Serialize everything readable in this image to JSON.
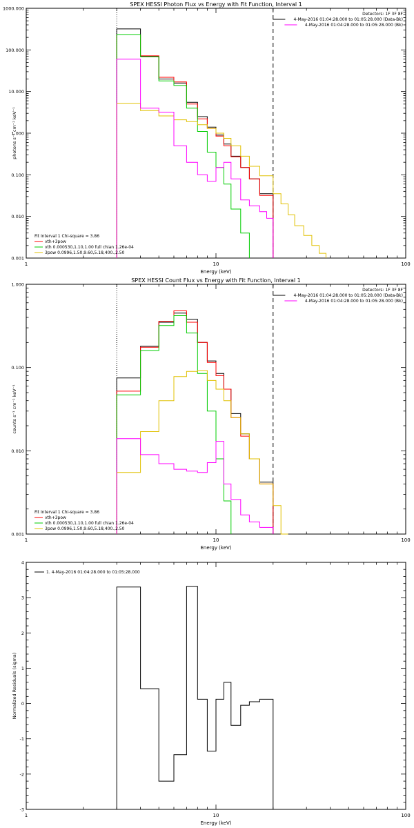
{
  "chart_data": [
    {
      "type": "line",
      "title": "SPEX HESSI Photon Flux vs Energy with Fit Function, Interval 1",
      "xlabel": "Energy (keV)",
      "ylabel": "photons s⁻¹ cm⁻² keV⁻¹",
      "xscale": "log",
      "yscale": "log",
      "xlim": [
        1,
        100
      ],
      "ylim": [
        0.001,
        1000
      ],
      "xticks": [
        {
          "v": 1,
          "l": "1"
        },
        {
          "v": 10,
          "l": "10"
        },
        {
          "v": 100,
          "l": "100"
        }
      ],
      "yticks": [
        {
          "v": 0.001,
          "l": "0.001"
        },
        {
          "v": 0.01,
          "l": "0.010"
        },
        {
          "v": 0.1,
          "l": "0.100"
        },
        {
          "v": 1,
          "l": "1.000"
        },
        {
          "v": 10,
          "l": "10.000"
        },
        {
          "v": 100,
          "l": "100.000"
        },
        {
          "v": 1000,
          "l": "1000.000"
        }
      ],
      "vlines": [
        {
          "x": 3.0,
          "style": "dotted"
        },
        {
          "x": 20.0,
          "style": "dashed"
        }
      ],
      "legend_tr": {
        "lines": [
          {
            "text": "Detectors: 1F 3F 8F",
            "color": ""
          },
          {
            "text": "4-May-2016 01:04:28.000 to 01:05:28.000 (Data-Bk)",
            "color": "#000000"
          },
          {
            "text": "4-May-2016 01:04:28.000 to 01:05:28.000 (Bk)",
            "color": "#ff00ff"
          }
        ]
      },
      "legend_bl": {
        "header": "Fit Interval 1   Chi-square = 3.86",
        "lines": [
          {
            "text": "vth+3pow",
            "color": "#ff0000"
          },
          {
            "text": "vth 0.000530,1.10,1.00  full chian 1.26e-04",
            "color": "#00cc00"
          },
          {
            "text": "3pow 0.0996,1.50,9.60,5.18,400.,2.50",
            "color": "#e0c000"
          }
        ]
      },
      "series": [
        {
          "color": "#000000",
          "edges": [
            3,
            4,
            5,
            6,
            7,
            8,
            9,
            10,
            11,
            12,
            13.5,
            15,
            17,
            20
          ],
          "values": [
            320,
            70,
            20,
            16,
            5.5,
            2.5,
            1.4,
            0.9,
            0.55,
            0.28,
            0.15,
            0.08,
            0.035
          ]
        },
        {
          "color": "#ff0000",
          "edges": [
            3,
            4,
            5,
            6,
            7,
            8,
            9,
            10,
            11,
            12,
            13.5,
            15,
            17,
            20
          ],
          "values": [
            230,
            72,
            22,
            17,
            5,
            2.2,
            1.3,
            0.85,
            0.5,
            0.27,
            0.15,
            0.08,
            0.032
          ]
        },
        {
          "color": "#00cc00",
          "edges": [
            3,
            4,
            5,
            6,
            7,
            8,
            9,
            10,
            11,
            12,
            13.5,
            15
          ],
          "values": [
            230,
            68,
            18,
            14,
            4,
            1.1,
            0.35,
            0.15,
            0.06,
            0.015,
            0.004,
            0.001
          ]
        },
        {
          "color": "#e0c000",
          "edges": [
            3,
            4,
            5,
            6,
            7,
            8,
            9,
            10,
            11,
            12,
            13.5,
            15,
            17,
            20,
            22,
            24,
            26,
            29,
            32,
            35,
            38
          ],
          "values": [
            5.2,
            3.5,
            2.6,
            2.1,
            1.9,
            1.6,
            1.3,
            1.0,
            0.75,
            0.5,
            0.28,
            0.16,
            0.095,
            0.035,
            0.02,
            0.011,
            0.006,
            0.0035,
            0.002,
            0.0013
          ]
        },
        {
          "color": "#ff00ff",
          "edges": [
            3,
            4,
            5,
            6,
            7,
            8,
            9,
            10,
            11,
            12,
            13.5,
            15,
            17,
            18.5,
            20
          ],
          "values": [
            60,
            4.0,
            3.2,
            0.5,
            0.2,
            0.1,
            0.07,
            0.15,
            0.2,
            0.08,
            0.025,
            0.018,
            0.013,
            0.009
          ]
        }
      ]
    },
    {
      "type": "line",
      "title": "SPEX HESSI Count Flux vs Energy with Fit Function, Interval 1",
      "xlabel": "Energy (keV)",
      "ylabel": "counts s⁻¹ cm⁻² keV⁻¹",
      "xscale": "log",
      "yscale": "log",
      "xlim": [
        1,
        100
      ],
      "ylim": [
        0.001,
        1
      ],
      "xticks": [
        {
          "v": 1,
          "l": "1"
        },
        {
          "v": 10,
          "l": "10"
        },
        {
          "v": 100,
          "l": "100"
        }
      ],
      "yticks": [
        {
          "v": 0.001,
          "l": "0.001"
        },
        {
          "v": 0.01,
          "l": "0.010"
        },
        {
          "v": 0.1,
          "l": "0.100"
        },
        {
          "v": 1,
          "l": "1.000"
        }
      ],
      "vlines": [
        {
          "x": 3.0,
          "style": "dotted"
        },
        {
          "x": 20.0,
          "style": "dashed"
        }
      ],
      "legend_tr": {
        "lines": [
          {
            "text": "Detectors: 1F 3F 8F",
            "color": ""
          },
          {
            "text": "4-May-2016 01:04:28.000 to 01:05:28.000 (Data-Bk)",
            "color": "#000000"
          },
          {
            "text": "4-May-2016 01:04:28.000 to 01:05:28.000 (Bk)",
            "color": "#ff00ff"
          }
        ]
      },
      "legend_bl": {
        "header": "Fit Interval 1   Chi-square = 3.86",
        "lines": [
          {
            "text": "vth+3pow",
            "color": "#ff0000"
          },
          {
            "text": "vth 0.000530,1.10,1.00  full chian 1.26e-04",
            "color": "#00cc00"
          },
          {
            "text": "3pow 0.0996,1.50,9.60,5.18,400.,2.50",
            "color": "#e0c000"
          }
        ]
      },
      "series": [
        {
          "color": "#000000",
          "edges": [
            3,
            4,
            5,
            6,
            7,
            8,
            9,
            10,
            11,
            12,
            13.5,
            15,
            17,
            20
          ],
          "values": [
            0.075,
            0.18,
            0.35,
            0.45,
            0.38,
            0.2,
            0.12,
            0.085,
            0.055,
            0.028,
            0.016,
            0.008,
            0.0042
          ]
        },
        {
          "color": "#ff0000",
          "edges": [
            3,
            4,
            5,
            6,
            7,
            8,
            9,
            10,
            11,
            12,
            13.5,
            15,
            17,
            20
          ],
          "values": [
            0.052,
            0.175,
            0.36,
            0.48,
            0.35,
            0.2,
            0.115,
            0.08,
            0.055,
            0.025,
            0.015,
            0.008,
            0.004
          ]
        },
        {
          "color": "#00cc00",
          "edges": [
            3,
            4,
            5,
            6,
            7,
            8,
            9,
            10,
            11,
            12
          ],
          "values": [
            0.047,
            0.16,
            0.32,
            0.42,
            0.26,
            0.085,
            0.03,
            0.008,
            0.0025
          ]
        },
        {
          "color": "#e0c000",
          "edges": [
            3,
            4,
            5,
            6,
            7,
            8,
            9,
            10,
            11,
            12,
            13.5,
            15,
            17,
            20,
            22,
            24
          ],
          "values": [
            0.0055,
            0.017,
            0.04,
            0.078,
            0.09,
            0.092,
            0.07,
            0.055,
            0.04,
            0.025,
            0.016,
            0.008,
            0.004,
            0.0022,
            0.001
          ]
        },
        {
          "color": "#ff00ff",
          "edges": [
            3,
            4,
            5,
            6,
            7,
            8,
            9,
            10,
            11,
            12,
            13.5,
            15,
            17,
            20
          ],
          "values": [
            0.014,
            0.009,
            0.007,
            0.006,
            0.0057,
            0.0055,
            0.0072,
            0.013,
            0.004,
            0.0026,
            0.0017,
            0.0014,
            0.0012
          ]
        }
      ]
    },
    {
      "type": "line",
      "title": "",
      "xlabel": "Energy (keV)",
      "ylabel": "Normalized Residuals (sigma)",
      "xscale": "log",
      "yscale": "linear",
      "xlim": [
        1,
        100
      ],
      "ylim": [
        -3,
        4
      ],
      "xticks": [
        {
          "v": 1,
          "l": "1"
        },
        {
          "v": 10,
          "l": "10"
        },
        {
          "v": 100,
          "l": "100"
        }
      ],
      "yticks": [
        {
          "v": -3,
          "l": "-3"
        },
        {
          "v": -2,
          "l": "-2"
        },
        {
          "v": -1,
          "l": "-1"
        },
        {
          "v": 0,
          "l": "0"
        },
        {
          "v": 1,
          "l": "1"
        },
        {
          "v": 2,
          "l": "2"
        },
        {
          "v": 3,
          "l": "3"
        },
        {
          "v": 4,
          "l": "4"
        }
      ],
      "vlines": [],
      "legend_tl": {
        "lines": [
          {
            "text": "1.  4-May-2016 01:04:28.000 to 01:05:28.000",
            "color": "#000000"
          }
        ]
      },
      "series": [
        {
          "color": "#000000",
          "edges": [
            3,
            4,
            5,
            6,
            7,
            8,
            9,
            10,
            11,
            12,
            13.5,
            15,
            17,
            20
          ],
          "values": [
            3.3,
            0.42,
            -2.2,
            -1.45,
            3.32,
            0.12,
            -1.35,
            0.12,
            0.6,
            -0.62,
            -0.05,
            0.05,
            0.12
          ],
          "baseline": -3
        }
      ]
    }
  ]
}
